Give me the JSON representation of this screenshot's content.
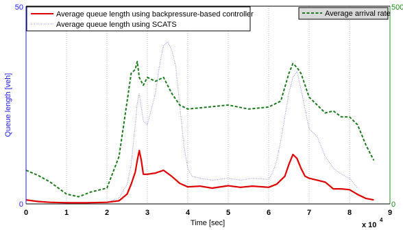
{
  "chart_data": {
    "type": "line",
    "xlabel": "Time [sec]",
    "ylabel_left": "Queue length [veh]",
    "x_exponent_label": "x 10",
    "x_exponent_power": "4",
    "xlim": [
      0,
      9
    ],
    "ylim_left": [
      0,
      50
    ],
    "ylim_right": [
      0,
      500
    ],
    "x_ticks": [
      "0",
      "1",
      "2",
      "3",
      "4",
      "5",
      "6",
      "7",
      "8",
      "9"
    ],
    "y_ticks_left": [
      "0",
      "50"
    ],
    "y_ticks_right": [
      "0",
      "500"
    ],
    "grid": "vertical dotted",
    "legend_left_placement": "top-left",
    "legend_right_placement": "top-right",
    "colors": {
      "left_axis": "#1a1aff",
      "right_axis": "#1a8a1a",
      "backpressure": "#e00000",
      "scats": "#8a8ae0",
      "arrival": "#1a7a1a",
      "legend_right_bg": "#d9d9d9"
    },
    "series": [
      {
        "name": "Average queue length using backpressure-based controller",
        "axis": "left",
        "style": "solid",
        "x": [
          0,
          0.3,
          0.6,
          1.0,
          1.5,
          2.0,
          2.3,
          2.5,
          2.6,
          2.7,
          2.75,
          2.8,
          2.85,
          2.9,
          3.0,
          3.2,
          3.4,
          3.6,
          3.8,
          4.0,
          4.3,
          4.6,
          5.0,
          5.3,
          5.6,
          6.0,
          6.2,
          6.4,
          6.5,
          6.6,
          6.7,
          6.8,
          6.9,
          7.0,
          7.2,
          7.4,
          7.6,
          7.8,
          8.0,
          8.2,
          8.4,
          8.6
        ],
        "values": [
          1.0,
          0.6,
          0.4,
          0.3,
          0.3,
          0.4,
          0.8,
          2.5,
          5.0,
          8.0,
          11.0,
          13.5,
          11.0,
          7.5,
          7.5,
          7.8,
          8.5,
          7.0,
          5.2,
          4.3,
          4.5,
          4.0,
          4.6,
          4.2,
          4.5,
          4.2,
          5.0,
          7.0,
          10.0,
          12.5,
          11.5,
          9.0,
          7.0,
          6.5,
          6.0,
          5.5,
          3.8,
          3.8,
          3.6,
          2.4,
          1.4,
          1.0
        ]
      },
      {
        "name": "Average queue length using SCATS",
        "axis": "left",
        "style": "dotted",
        "x": [
          0,
          0.5,
          1.0,
          1.5,
          2.0,
          2.3,
          2.5,
          2.6,
          2.7,
          2.75,
          2.8,
          2.9,
          3.0,
          3.1,
          3.2,
          3.3,
          3.4,
          3.5,
          3.6,
          3.7,
          3.8,
          3.9,
          4.0,
          4.1,
          4.3,
          4.6,
          5.0,
          5.3,
          5.6,
          6.0,
          6.1,
          6.2,
          6.3,
          6.4,
          6.5,
          6.6,
          6.7,
          6.8,
          6.9,
          7.0,
          7.2,
          7.4,
          7.6,
          7.8,
          8.0,
          8.2
        ],
        "values": [
          1.0,
          0.5,
          0.4,
          0.3,
          0.4,
          1.5,
          5.0,
          10.0,
          20.0,
          25.5,
          28.0,
          21.0,
          20.0,
          24.0,
          28.0,
          35.0,
          40.0,
          41.0,
          39.0,
          35.0,
          25.0,
          15.0,
          9.0,
          7.0,
          6.5,
          6.0,
          6.5,
          6.0,
          6.5,
          6.2,
          8.0,
          11.0,
          16.0,
          22.0,
          28.0,
          32.0,
          33.5,
          29.0,
          24.0,
          19.0,
          17.0,
          12.0,
          9.0,
          7.5,
          6.5,
          4.0
        ]
      },
      {
        "name": "Average arrival rate",
        "axis": "right",
        "style": "dashed",
        "x": [
          0,
          0.3,
          0.6,
          1.0,
          1.3,
          1.6,
          2.0,
          2.3,
          2.5,
          2.6,
          2.7,
          2.75,
          2.8,
          2.9,
          3.0,
          3.2,
          3.4,
          3.5,
          3.6,
          3.8,
          4.0,
          4.5,
          5.0,
          5.5,
          6.0,
          6.3,
          6.5,
          6.6,
          6.7,
          6.8,
          6.9,
          7.0,
          7.2,
          7.4,
          7.6,
          7.8,
          8.0,
          8.2,
          8.4,
          8.6
        ],
        "values": [
          85,
          72,
          55,
          25,
          18,
          30,
          40,
          120,
          260,
          330,
          340,
          360,
          320,
          300,
          320,
          310,
          320,
          300,
          280,
          250,
          240,
          245,
          250,
          240,
          245,
          260,
          330,
          355,
          345,
          330,
          300,
          270,
          250,
          230,
          235,
          220,
          220,
          200,
          150,
          110
        ]
      }
    ]
  }
}
